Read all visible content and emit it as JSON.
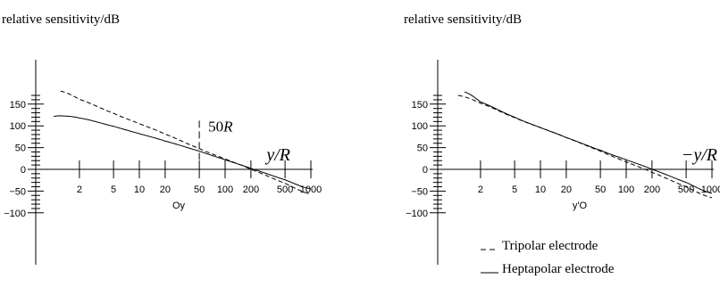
{
  "chart_data": [
    {
      "type": "line",
      "ylabel": "relative sensitivity/dB",
      "xaxis_label": "y/R",
      "xaxis_sublabel": "Oy",
      "xscale": "log",
      "xlim": [
        1,
        1000
      ],
      "ylim": [
        -120,
        180
      ],
      "xticks": [
        2,
        5,
        10,
        20,
        50,
        100,
        200,
        500,
        1000
      ],
      "yticks": [
        150,
        100,
        50,
        0,
        -50,
        -100
      ],
      "annotation": {
        "text": "50R",
        "x": 50,
        "from_y": 22,
        "to_y": 112
      },
      "series": [
        {
          "style": "dashed",
          "x": [
            1.2,
            2,
            5,
            10,
            20,
            50,
            100,
            200,
            500,
            1000
          ],
          "y": [
            180,
            161,
            129,
            105,
            81,
            48,
            24,
            0,
            -32,
            -57
          ]
        },
        {
          "style": "solid",
          "x": [
            1,
            1.2,
            2,
            5,
            10,
            20,
            50,
            100,
            200,
            500,
            1000
          ],
          "y": [
            122,
            123,
            118,
            99,
            82,
            65,
            42,
            22,
            2,
            -24,
            -45
          ]
        }
      ]
    },
    {
      "type": "line",
      "ylabel": "relative sensitivity/dB",
      "xaxis_label": "−y/R",
      "xaxis_sublabel": "y'O",
      "xscale": "log",
      "xlim": [
        1,
        1000
      ],
      "ylim": [
        -120,
        180
      ],
      "xticks": [
        2,
        5,
        10,
        20,
        50,
        100,
        200,
        500,
        1000
      ],
      "yticks": [
        150,
        100,
        50,
        0,
        -50,
        -100
      ],
      "series": [
        {
          "name": "Tripolar electrode",
          "style": "dashed",
          "x": [
            1.1,
            2,
            5,
            10,
            20,
            50,
            100,
            200,
            500,
            1000
          ],
          "y": [
            170,
            152,
            119,
            96,
            73,
            42,
            17,
            -7,
            -40,
            -65
          ]
        },
        {
          "name": "Heptapolar electrode",
          "style": "solid",
          "x": [
            1.3,
            2,
            5,
            10,
            20,
            50,
            100,
            200,
            500,
            1000
          ],
          "y": [
            178,
            155,
            120,
            96,
            73,
            44,
            22,
            0,
            -30,
            -55
          ]
        }
      ]
    }
  ]
}
